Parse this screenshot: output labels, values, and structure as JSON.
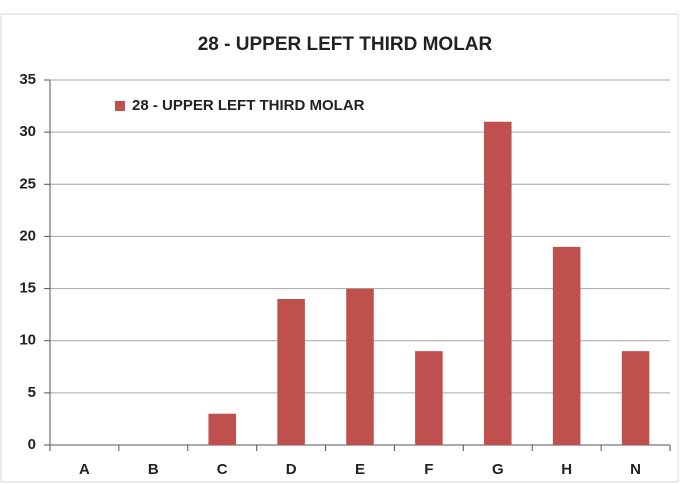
{
  "chart_data": {
    "type": "bar",
    "title": "28 - UPPER LEFT THIRD MOLAR",
    "categories": [
      "A",
      "B",
      "C",
      "D",
      "E",
      "F",
      "G",
      "H",
      "N"
    ],
    "series": [
      {
        "name": "28 - UPPER LEFT THIRD MOLAR",
        "color": "#c0504d",
        "values": [
          0,
          0,
          3,
          14,
          15,
          9,
          31,
          19,
          9
        ]
      }
    ],
    "ylim": [
      0,
      35
    ],
    "yticks": [
      0,
      5,
      10,
      15,
      20,
      25,
      30,
      35
    ],
    "grid": true,
    "legend": "top-left"
  }
}
